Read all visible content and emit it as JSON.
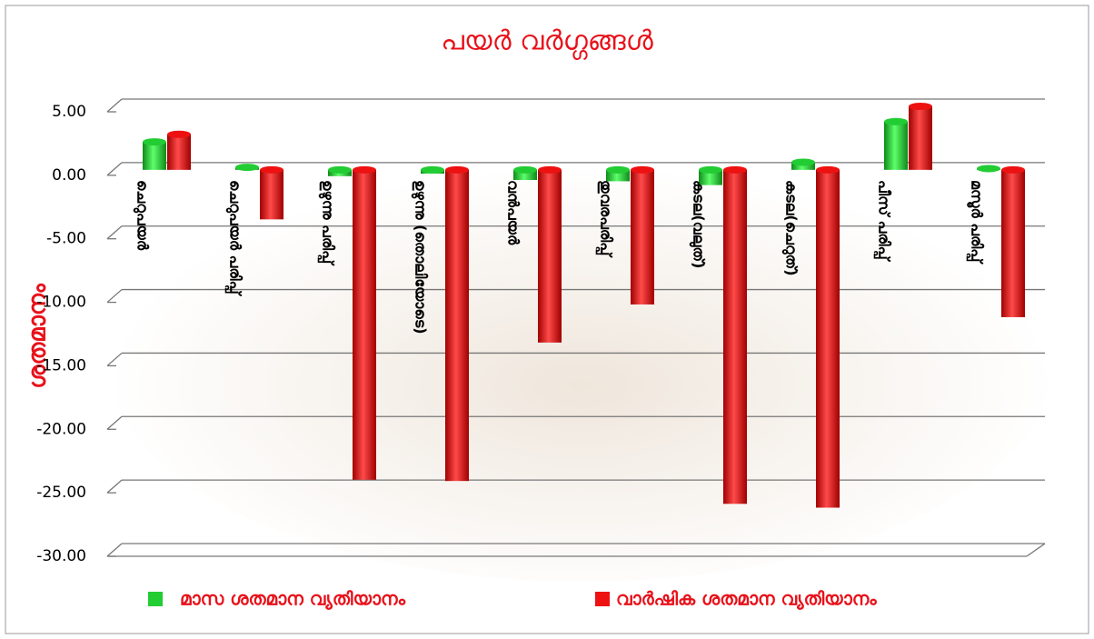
{
  "chart_data": {
    "type": "bar",
    "title": "പയർ വർഗ്ഗങ്ങൾ",
    "ylabel": "ശതമാനം",
    "categories": [
      "ചെറുപയർ",
      "ചെറുപയർ പരിപ്പ്",
      "ഉഴുന്നു പരിപ്പ്",
      "ഉഴുന്നു (തൊലിയോടെ)",
      "വൻപയർ",
      "തുവരപരിപ്പ്",
      "കടല(വലുത്)",
      "കടല(ചെറുത്)",
      "പീസ് പരിപ്പ്",
      "മസൂർ പരിപ്പ്"
    ],
    "series": [
      {
        "name": "മാസ ശതമാന വ്യതിയാനം",
        "color": "#22cc33",
        "values": [
          2.2,
          0.2,
          -0.5,
          -0.3,
          -0.8,
          -0.9,
          -1.2,
          0.6,
          3.8,
          0.1
        ]
      },
      {
        "name": "വാർഷിക  ശതമാന വ്യതിയാനം",
        "color": "#ee1111",
        "values": [
          2.8,
          -3.9,
          -24.4,
          -24.5,
          -13.6,
          -10.6,
          -26.3,
          -26.6,
          5.0,
          -11.6
        ]
      }
    ],
    "ylim": [
      -30,
      5
    ],
    "yticks": [
      {
        "value": -30,
        "label": "-30.00"
      },
      {
        "value": -25,
        "label": "-25.00"
      },
      {
        "value": -20,
        "label": "-20.00"
      },
      {
        "value": -15,
        "label": "-15.00"
      },
      {
        "value": -10,
        "label": "-10.00"
      },
      {
        "value": -5,
        "label": "-5.00"
      },
      {
        "value": 0,
        "label": "0.00"
      },
      {
        "value": 5,
        "label": "5.00"
      }
    ],
    "grid": true
  }
}
